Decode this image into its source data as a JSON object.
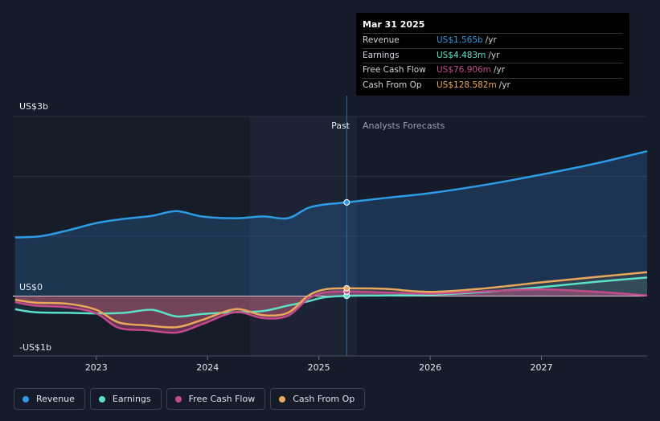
{
  "chart_data": {
    "type": "area",
    "y_axis": {
      "top_label": "US$3b",
      "zero_label": "US$0",
      "bottom_label": "-US$1b",
      "ylim": [
        -1.0,
        3.0
      ]
    },
    "x_axis": {
      "ticks": [
        "2023",
        "2024",
        "2025",
        "2026",
        "2027"
      ],
      "xlim": [
        2022.25,
        2027.95
      ]
    },
    "divider": {
      "past_label": "Past",
      "forecast_label": "Analysts Forecasts",
      "at": 2025.25
    },
    "series": [
      {
        "name": "Revenue",
        "color": "#2d9be6",
        "x": [
          2022.27,
          2022.5,
          2022.75,
          2023.0,
          2023.25,
          2023.5,
          2023.72,
          2023.95,
          2024.25,
          2024.5,
          2024.72,
          2024.9,
          2025.05,
          2025.25,
          2025.6,
          2026.0,
          2026.5,
          2027.0,
          2027.5,
          2027.95
        ],
        "values": [
          0.98,
          1.0,
          1.1,
          1.22,
          1.29,
          1.34,
          1.42,
          1.33,
          1.3,
          1.33,
          1.3,
          1.47,
          1.53,
          1.565,
          1.64,
          1.72,
          1.86,
          2.03,
          2.22,
          2.42
        ]
      },
      {
        "name": "Earnings",
        "color": "#5ce0c6",
        "x": [
          2022.27,
          2022.45,
          2022.75,
          2023.0,
          2023.25,
          2023.5,
          2023.72,
          2023.95,
          2024.25,
          2024.5,
          2024.72,
          2024.9,
          2025.05,
          2025.25,
          2025.6,
          2026.0,
          2026.5,
          2027.0,
          2027.5,
          2027.95
        ],
        "values": [
          -0.22,
          -0.27,
          -0.28,
          -0.29,
          -0.28,
          -0.23,
          -0.34,
          -0.3,
          -0.27,
          -0.25,
          -0.16,
          -0.09,
          -0.02,
          0.004,
          0.01,
          0.02,
          0.07,
          0.15,
          0.24,
          0.31
        ]
      },
      {
        "name": "Free Cash Flow",
        "color": "#c44b8a",
        "x": [
          2022.27,
          2022.45,
          2022.75,
          2023.0,
          2023.2,
          2023.45,
          2023.72,
          2023.95,
          2024.25,
          2024.5,
          2024.72,
          2024.9,
          2025.05,
          2025.25,
          2025.6,
          2026.0,
          2026.5,
          2027.0,
          2027.5,
          2027.95
        ],
        "values": [
          -0.1,
          -0.16,
          -0.19,
          -0.29,
          -0.53,
          -0.57,
          -0.61,
          -0.47,
          -0.27,
          -0.37,
          -0.33,
          -0.05,
          0.06,
          0.077,
          0.06,
          0.04,
          0.08,
          0.11,
          0.07,
          0.01
        ]
      },
      {
        "name": "Cash From Op",
        "color": "#e9a85a",
        "x": [
          2022.27,
          2022.45,
          2022.75,
          2023.0,
          2023.2,
          2023.45,
          2023.72,
          2023.95,
          2024.25,
          2024.5,
          2024.72,
          2024.9,
          2025.05,
          2025.25,
          2025.6,
          2026.0,
          2026.5,
          2027.0,
          2027.5,
          2027.95
        ],
        "values": [
          -0.06,
          -0.11,
          -0.13,
          -0.23,
          -0.44,
          -0.49,
          -0.52,
          -0.4,
          -0.22,
          -0.32,
          -0.28,
          0.0,
          0.11,
          0.129,
          0.12,
          0.07,
          0.13,
          0.23,
          0.32,
          0.4
        ]
      }
    ],
    "highlight_x": 2025.25
  },
  "tooltip": {
    "date": "Mar 31 2025",
    "rows": [
      {
        "label": "Revenue",
        "value": "US$1.565b",
        "unit": "/yr",
        "color": "#2d9be6"
      },
      {
        "label": "Earnings",
        "value": "US$4.483m",
        "unit": "/yr",
        "color": "#5ce0c6"
      },
      {
        "label": "Free Cash Flow",
        "value": "US$76.906m",
        "unit": "/yr",
        "color": "#c44b8a"
      },
      {
        "label": "Cash From Op",
        "value": "US$128.582m",
        "unit": "/yr",
        "color": "#e9a85a"
      }
    ]
  },
  "legend": [
    {
      "label": "Revenue",
      "color": "#2d9be6"
    },
    {
      "label": "Earnings",
      "color": "#5ce0c6"
    },
    {
      "label": "Free Cash Flow",
      "color": "#c44b8a"
    },
    {
      "label": "Cash From Op",
      "color": "#e9a85a"
    }
  ]
}
